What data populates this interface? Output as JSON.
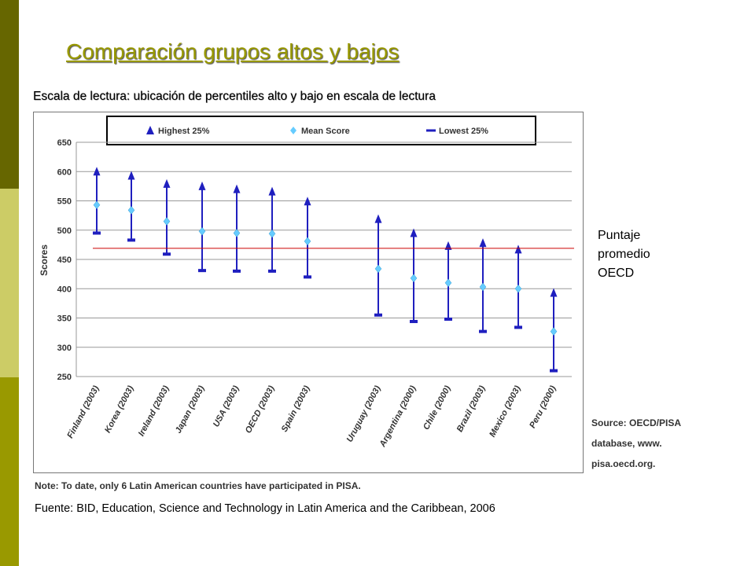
{
  "slide": {
    "title": "Comparación grupos altos y bajos",
    "subtitle": "Escala de lectura: ubicación de percentiles alto y bajo en escala de lectura",
    "oecd_label_lines": [
      "Puntaje",
      "promedio",
      "OECD"
    ],
    "source_bottom": "Fuente: BID, Education, Science and Technology in Latin America and the Caribbean, 2006",
    "colors": {
      "accent": "#999900",
      "marker": "#1f1fbf",
      "mean_marker": "#66ccff",
      "reference_line": "#cc0000"
    }
  },
  "chart_data": {
    "type": "scatter",
    "categories": [
      "Finland (2003)",
      "Korea (2003)",
      "Ireland (2003)",
      "Japan (2003)",
      "USA (2003)",
      "OECD (2003)",
      "Spain (2003)",
      "Uruguay (2003)",
      "Argentina (2000)",
      "Chile (2000)",
      "Brazil (2003)",
      "Mexico (2003)",
      "Peru (2000)"
    ],
    "series": [
      {
        "name": "Highest 25%",
        "values": [
          600,
          593,
          579,
          575,
          570,
          566,
          549,
          519,
          495,
          473,
          478,
          467,
          393
        ]
      },
      {
        "name": "Mean Score",
        "values": [
          543,
          534,
          515,
          498,
          495,
          494,
          481,
          434,
          418,
          410,
          403,
          400,
          327
        ]
      },
      {
        "name": "Lowest 25%",
        "values": [
          495,
          483,
          459,
          431,
          430,
          430,
          420,
          355,
          344,
          348,
          327,
          334,
          260
        ]
      }
    ],
    "reference_line": 469,
    "ylabel": "Scores",
    "xlabel": "",
    "ylim": [
      250,
      650
    ],
    "yticks": [
      650,
      600,
      550,
      500,
      450,
      400,
      350,
      300,
      250
    ],
    "grid": true,
    "legend_position": "top",
    "source_note": [
      "Source: OECD/PISA",
      "database, www.",
      "pisa.oecd.org."
    ],
    "note": "Note: To date, only 6 Latin American countries have participated in PISA."
  }
}
